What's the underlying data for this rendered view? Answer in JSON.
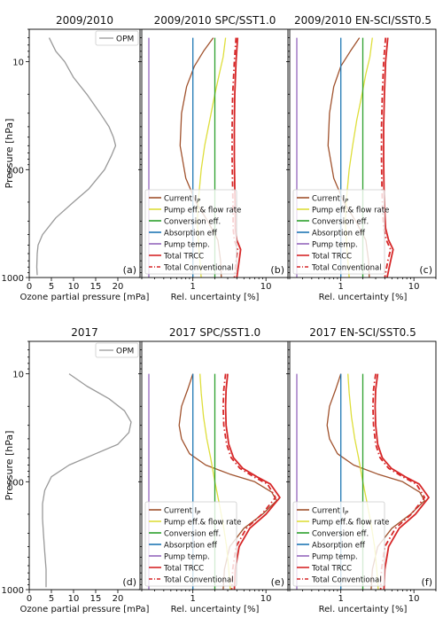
{
  "figure": {
    "ylabel": "Pressure [hPa]",
    "ytick_labels": [
      "10",
      "100",
      "1000"
    ]
  },
  "series_colors": {
    "OPM": "#999999",
    "Current I_P": "#a0522d",
    "Pump eff.& flow rate": "#dede3a",
    "Conversion eff.": "#2ca02c",
    "Absorption eff": "#1f77b4",
    "Pump temp.": "#9467bd",
    "Total TRCC": "#d62728",
    "Total Conventional": "#d62728"
  },
  "chart_data": [
    {
      "type": "line",
      "panel": "(a)",
      "title": "2009/2010",
      "xlabel": "Ozone partial pressure [mPa]",
      "ylabel": "Pressure [hPa]",
      "xlim": [
        0,
        25
      ],
      "ylim": [
        1000,
        5
      ],
      "y_scale": "log",
      "x_scale": "linear",
      "xtick_labels": [
        "0",
        "5",
        "10",
        "15",
        "20"
      ],
      "xticks": [
        0,
        5,
        10,
        15,
        20
      ],
      "legend": {
        "placement": "top-right",
        "entries": [
          "OPM"
        ]
      },
      "series": [
        {
          "name": "OPM",
          "x": [
            4.5,
            6,
            8,
            10,
            13,
            16,
            18,
            19,
            19.5,
            18.5,
            17,
            13.5,
            10,
            6,
            3,
            2,
            1.8,
            1.7,
            1.8
          ],
          "y": [
            6,
            8,
            10,
            14,
            20,
            30,
            40,
            50,
            60,
            75,
            100,
            150,
            200,
            280,
            400,
            500,
            600,
            800,
            950
          ]
        }
      ]
    },
    {
      "type": "line",
      "panel": "(b)",
      "title": "2009/2010 SPC/SST1.0",
      "xlabel": "Rel. uncertainty [%]",
      "xlim": [
        0.2,
        20
      ],
      "ylim": [
        1000,
        5
      ],
      "x_scale": "log",
      "y_scale": "log",
      "xtick_labels": [
        "1",
        "10"
      ],
      "xticks": [
        1,
        10
      ],
      "legend": {
        "placement": "lower-right",
        "entries": [
          "Current I_P",
          "Pump eff.& flow rate",
          "Conversion eff.",
          "Absorption eff",
          "Pump temp.",
          "Total TRCC",
          "Total Conventional"
        ]
      },
      "series": [
        {
          "name": "Current I_P",
          "x": [
            1.9,
            1.4,
            1.05,
            0.82,
            0.7,
            0.67,
            0.8,
            1.1,
            1.6,
            2.2,
            2.4,
            2.45
          ],
          "y": [
            6,
            8,
            11,
            17,
            30,
            60,
            120,
            200,
            300,
            450,
            700,
            1000
          ]
        },
        {
          "name": "Pump eff.& flow rate",
          "x": [
            2.8,
            2.6,
            2.3,
            2.0,
            1.7,
            1.45,
            1.3,
            1.2,
            1.15,
            1.2,
            1.3
          ],
          "y": [
            6,
            9,
            13,
            20,
            35,
            60,
            100,
            180,
            300,
            500,
            1000
          ]
        },
        {
          "name": "Conversion eff.",
          "x": [
            2.0,
            2.0
          ],
          "y": [
            6,
            1000
          ]
        },
        {
          "name": "Absorption eff",
          "x": [
            1.0,
            1.0
          ],
          "y": [
            6,
            1000
          ]
        },
        {
          "name": "Pump temp.",
          "x": [
            0.25,
            0.25
          ],
          "y": [
            6,
            1000
          ]
        },
        {
          "name": "Total TRCC",
          "x": [
            4.1,
            3.9,
            3.75,
            3.7,
            3.7,
            3.75,
            3.8,
            3.8,
            4.0,
            4.5,
            4.3,
            4.0
          ],
          "y": [
            6,
            10,
            20,
            40,
            80,
            150,
            250,
            350,
            450,
            550,
            700,
            1000
          ]
        },
        {
          "name": "Total Conventional",
          "x": [
            3.9,
            3.7,
            3.5,
            3.45,
            3.45,
            3.5,
            3.55,
            3.55,
            3.7,
            4.1,
            3.9,
            3.7
          ],
          "y": [
            6,
            10,
            20,
            40,
            80,
            150,
            250,
            350,
            450,
            550,
            700,
            1000
          ]
        }
      ]
    },
    {
      "type": "line",
      "panel": "(c)",
      "title": "2009/2010 EN-SCI/SST0.5",
      "xlabel": "Rel. uncertainty [%]",
      "xlim": [
        0.2,
        20
      ],
      "ylim": [
        1000,
        5
      ],
      "x_scale": "log",
      "y_scale": "log",
      "xtick_labels": [
        "1",
        "10"
      ],
      "xticks": [
        1,
        10
      ],
      "legend": {
        "placement": "lower-right",
        "entries": [
          "Current I_P",
          "Pump eff.& flow rate",
          "Conversion eff.",
          "Absorption eff",
          "Pump temp.",
          "Total TRCC",
          "Total Conventional"
        ]
      },
      "series": [
        {
          "name": "Current I_P",
          "x": [
            1.8,
            1.35,
            1.0,
            0.8,
            0.7,
            0.67,
            0.8,
            1.1,
            1.6,
            2.2,
            2.4,
            2.45
          ],
          "y": [
            6,
            8,
            11,
            17,
            30,
            60,
            120,
            200,
            300,
            450,
            700,
            1000
          ]
        },
        {
          "name": "Pump eff.& flow rate",
          "x": [
            2.7,
            2.5,
            2.2,
            1.95,
            1.65,
            1.45,
            1.3,
            1.2,
            1.15,
            1.2,
            1.3
          ],
          "y": [
            6,
            9,
            13,
            20,
            35,
            60,
            100,
            180,
            300,
            500,
            1000
          ]
        },
        {
          "name": "Conversion eff.",
          "x": [
            2.0,
            2.0
          ],
          "y": [
            6,
            1000
          ]
        },
        {
          "name": "Absorption eff",
          "x": [
            1.0,
            1.0
          ],
          "y": [
            6,
            1000
          ]
        },
        {
          "name": "Pump temp.",
          "x": [
            0.25,
            0.25
          ],
          "y": [
            6,
            1000
          ]
        },
        {
          "name": "Total TRCC",
          "x": [
            4.4,
            4.1,
            3.95,
            3.85,
            3.85,
            3.9,
            4.0,
            4.1,
            4.5,
            5.2,
            4.8,
            4.3
          ],
          "y": [
            6,
            10,
            20,
            40,
            80,
            150,
            250,
            350,
            450,
            550,
            700,
            1000
          ]
        },
        {
          "name": "Total Conventional",
          "x": [
            4.1,
            3.85,
            3.7,
            3.6,
            3.6,
            3.65,
            3.75,
            3.85,
            4.2,
            4.8,
            4.4,
            4.0
          ],
          "y": [
            6,
            10,
            20,
            40,
            80,
            150,
            250,
            350,
            450,
            550,
            700,
            1000
          ]
        }
      ]
    },
    {
      "type": "line",
      "panel": "(d)",
      "title": "2017",
      "xlabel": "Ozone partial pressure [mPa]",
      "ylabel": "Pressure [hPa]",
      "xlim": [
        0,
        25
      ],
      "ylim": [
        1000,
        5
      ],
      "y_scale": "log",
      "x_scale": "linear",
      "xtick_labels": [
        "0",
        "5",
        "10",
        "15",
        "20"
      ],
      "xticks": [
        0,
        5,
        10,
        15,
        20
      ],
      "legend": {
        "placement": "top-right",
        "entries": [
          "OPM"
        ]
      },
      "series": [
        {
          "name": "OPM",
          "x": [
            9,
            13,
            18,
            21.5,
            23,
            22.5,
            20,
            15,
            9,
            5,
            3.5,
            3,
            3,
            3.2,
            3.5,
            3.8,
            3.8
          ],
          "y": [
            10,
            13,
            17,
            22,
            28,
            35,
            45,
            55,
            70,
            90,
            120,
            160,
            220,
            300,
            450,
            650,
            950
          ]
        }
      ]
    },
    {
      "type": "line",
      "panel": "(e)",
      "title": "2017 SPC/SST1.0",
      "xlabel": "Rel. uncertainty [%]",
      "xlim": [
        0.2,
        20
      ],
      "ylim": [
        1000,
        5
      ],
      "x_scale": "log",
      "y_scale": "log",
      "xtick_labels": [
        "1",
        "10"
      ],
      "xticks": [
        1,
        10
      ],
      "legend": {
        "placement": "lower-right",
        "entries": [
          "Current I_P",
          "Pump eff.& flow rate",
          "Conversion eff.",
          "Absorption eff",
          "Pump temp.",
          "Total TRCC",
          "Total Conventional"
        ]
      },
      "series": [
        {
          "name": "Current I_P",
          "x": [
            1.0,
            0.85,
            0.7,
            0.65,
            0.7,
            0.9,
            1.5,
            3.2,
            7,
            12,
            14,
            9,
            5,
            3.2,
            2.7,
            2.6
          ],
          "y": [
            10,
            14,
            20,
            30,
            40,
            55,
            70,
            85,
            100,
            125,
            150,
            200,
            270,
            400,
            650,
            1000
          ]
        },
        {
          "name": "Pump eff.& flow rate",
          "x": [
            1.25,
            1.3,
            1.4,
            1.55,
            1.75,
            2.0,
            2.3,
            2.6,
            2.9,
            3.1,
            3.25
          ],
          "y": [
            10,
            15,
            25,
            40,
            60,
            100,
            160,
            250,
            400,
            650,
            1000
          ]
        },
        {
          "name": "Conversion eff.",
          "x": [
            2.0,
            2.0
          ],
          "y": [
            10,
            1000
          ]
        },
        {
          "name": "Absorption eff",
          "x": [
            1.0,
            1.0
          ],
          "y": [
            10,
            1000
          ]
        },
        {
          "name": "Pump temp.",
          "x": [
            0.25,
            0.25
          ],
          "y": [
            10,
            1000
          ]
        },
        {
          "name": "Total TRCC",
          "x": [
            3.0,
            2.85,
            2.8,
            2.85,
            3.1,
            3.6,
            4.8,
            7.5,
            11.5,
            15.5,
            10,
            6,
            4.3,
            3.8,
            3.7
          ],
          "y": [
            10,
            14,
            20,
            30,
            45,
            60,
            75,
            90,
            105,
            140,
            200,
            270,
            400,
            650,
            1000
          ]
        },
        {
          "name": "Total Conventional",
          "x": [
            2.8,
            2.65,
            2.6,
            2.65,
            2.9,
            3.35,
            4.4,
            6.8,
            10.5,
            13.5,
            8.8,
            5.4,
            3.9,
            3.5,
            3.4
          ],
          "y": [
            10,
            14,
            20,
            30,
            45,
            60,
            75,
            90,
            105,
            140,
            200,
            270,
            400,
            650,
            1000
          ]
        }
      ]
    },
    {
      "type": "line",
      "panel": "(f)",
      "title": "2017 EN-SCI/SST0.5",
      "xlabel": "Rel. uncertainty [%]",
      "xlim": [
        0.2,
        20
      ],
      "ylim": [
        1000,
        5
      ],
      "x_scale": "log",
      "y_scale": "log",
      "xtick_labels": [
        "1",
        "10"
      ],
      "xticks": [
        1,
        10
      ],
      "legend": {
        "placement": "lower-right",
        "entries": [
          "Current I_P",
          "Pump eff.& flow rate",
          "Conversion eff.",
          "Absorption eff",
          "Pump temp.",
          "Total TRCC",
          "Total Conventional"
        ]
      },
      "series": [
        {
          "name": "Current I_P",
          "x": [
            1.0,
            0.85,
            0.7,
            0.65,
            0.7,
            0.9,
            1.5,
            3.2,
            7,
            12,
            14,
            9,
            5,
            3.2,
            2.7,
            2.6
          ],
          "y": [
            10,
            14,
            20,
            30,
            40,
            55,
            70,
            85,
            100,
            125,
            150,
            200,
            270,
            400,
            650,
            1000
          ]
        },
        {
          "name": "Pump eff.& flow rate",
          "x": [
            1.25,
            1.3,
            1.4,
            1.55,
            1.75,
            2.0,
            2.3,
            2.6,
            2.9,
            3.1,
            3.25
          ],
          "y": [
            10,
            15,
            25,
            40,
            60,
            100,
            160,
            250,
            400,
            650,
            1000
          ]
        },
        {
          "name": "Conversion eff.",
          "x": [
            2.0,
            2.0
          ],
          "y": [
            10,
            1000
          ]
        },
        {
          "name": "Absorption eff",
          "x": [
            1.0,
            1.0
          ],
          "y": [
            10,
            1000
          ]
        },
        {
          "name": "Pump temp.",
          "x": [
            0.25,
            0.25
          ],
          "y": [
            10,
            1000
          ]
        },
        {
          "name": "Total TRCC",
          "x": [
            3.2,
            3.0,
            2.95,
            3.0,
            3.2,
            3.7,
            4.9,
            7.6,
            11.8,
            16,
            10.5,
            6.3,
            4.5,
            4.0,
            3.9
          ],
          "y": [
            10,
            14,
            20,
            30,
            45,
            60,
            75,
            90,
            105,
            140,
            200,
            270,
            400,
            650,
            1000
          ]
        },
        {
          "name": "Total Conventional",
          "x": [
            3.0,
            2.8,
            2.75,
            2.8,
            3.0,
            3.45,
            4.5,
            7.0,
            10.8,
            14,
            9.2,
            5.6,
            4.0,
            3.6,
            3.5
          ],
          "y": [
            10,
            14,
            20,
            30,
            45,
            60,
            75,
            90,
            105,
            140,
            200,
            270,
            400,
            650,
            1000
          ]
        }
      ]
    }
  ]
}
